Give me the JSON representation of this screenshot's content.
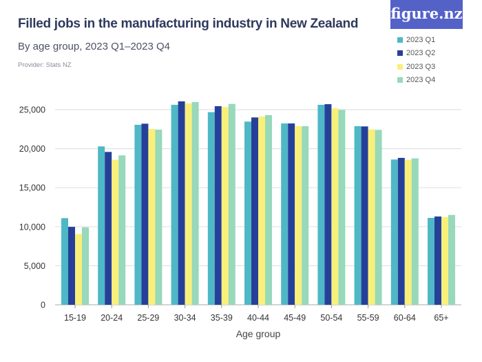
{
  "title": "Filled jobs in the manufacturing industry in New Zealand",
  "subtitle": "By age group, 2023 Q1–2023 Q4",
  "provider": "Provider: Stats NZ",
  "logo": "figure.nz",
  "chart_data": {
    "type": "bar",
    "title": "Filled jobs in the manufacturing industry in New Zealand",
    "xlabel": "Age group",
    "ylabel": "",
    "ylim": [
      0,
      27000
    ],
    "yticks": [
      0,
      5000,
      10000,
      15000,
      20000,
      25000
    ],
    "ytick_labels": [
      "0",
      "5,000",
      "10,000",
      "15,000",
      "20,000",
      "25,000"
    ],
    "grid": true,
    "legend": "top-right",
    "categories": [
      "15-19",
      "20-24",
      "25-29",
      "30-34",
      "35-39",
      "40-44",
      "45-49",
      "50-54",
      "55-59",
      "60-64",
      "65+"
    ],
    "series": [
      {
        "name": "2023 Q1",
        "color": "#4fb8c6",
        "values": [
          11100,
          20290,
          23060,
          25620,
          24680,
          23470,
          23230,
          25620,
          22880,
          18610,
          11130
        ]
      },
      {
        "name": "2023 Q2",
        "color": "#26409a",
        "values": [
          9980,
          19580,
          23200,
          26060,
          25440,
          24000,
          23230,
          25700,
          22850,
          18820,
          11310
        ]
      },
      {
        "name": "2023 Q3",
        "color": "#f9f07a",
        "values": [
          9070,
          18580,
          22530,
          25800,
          25330,
          24120,
          22880,
          25180,
          22470,
          18580,
          11220
        ]
      },
      {
        "name": "2023 Q4",
        "color": "#98d8bb",
        "values": [
          9920,
          19140,
          22440,
          25970,
          25740,
          24300,
          22880,
          24970,
          22410,
          18760,
          11510
        ]
      }
    ]
  }
}
